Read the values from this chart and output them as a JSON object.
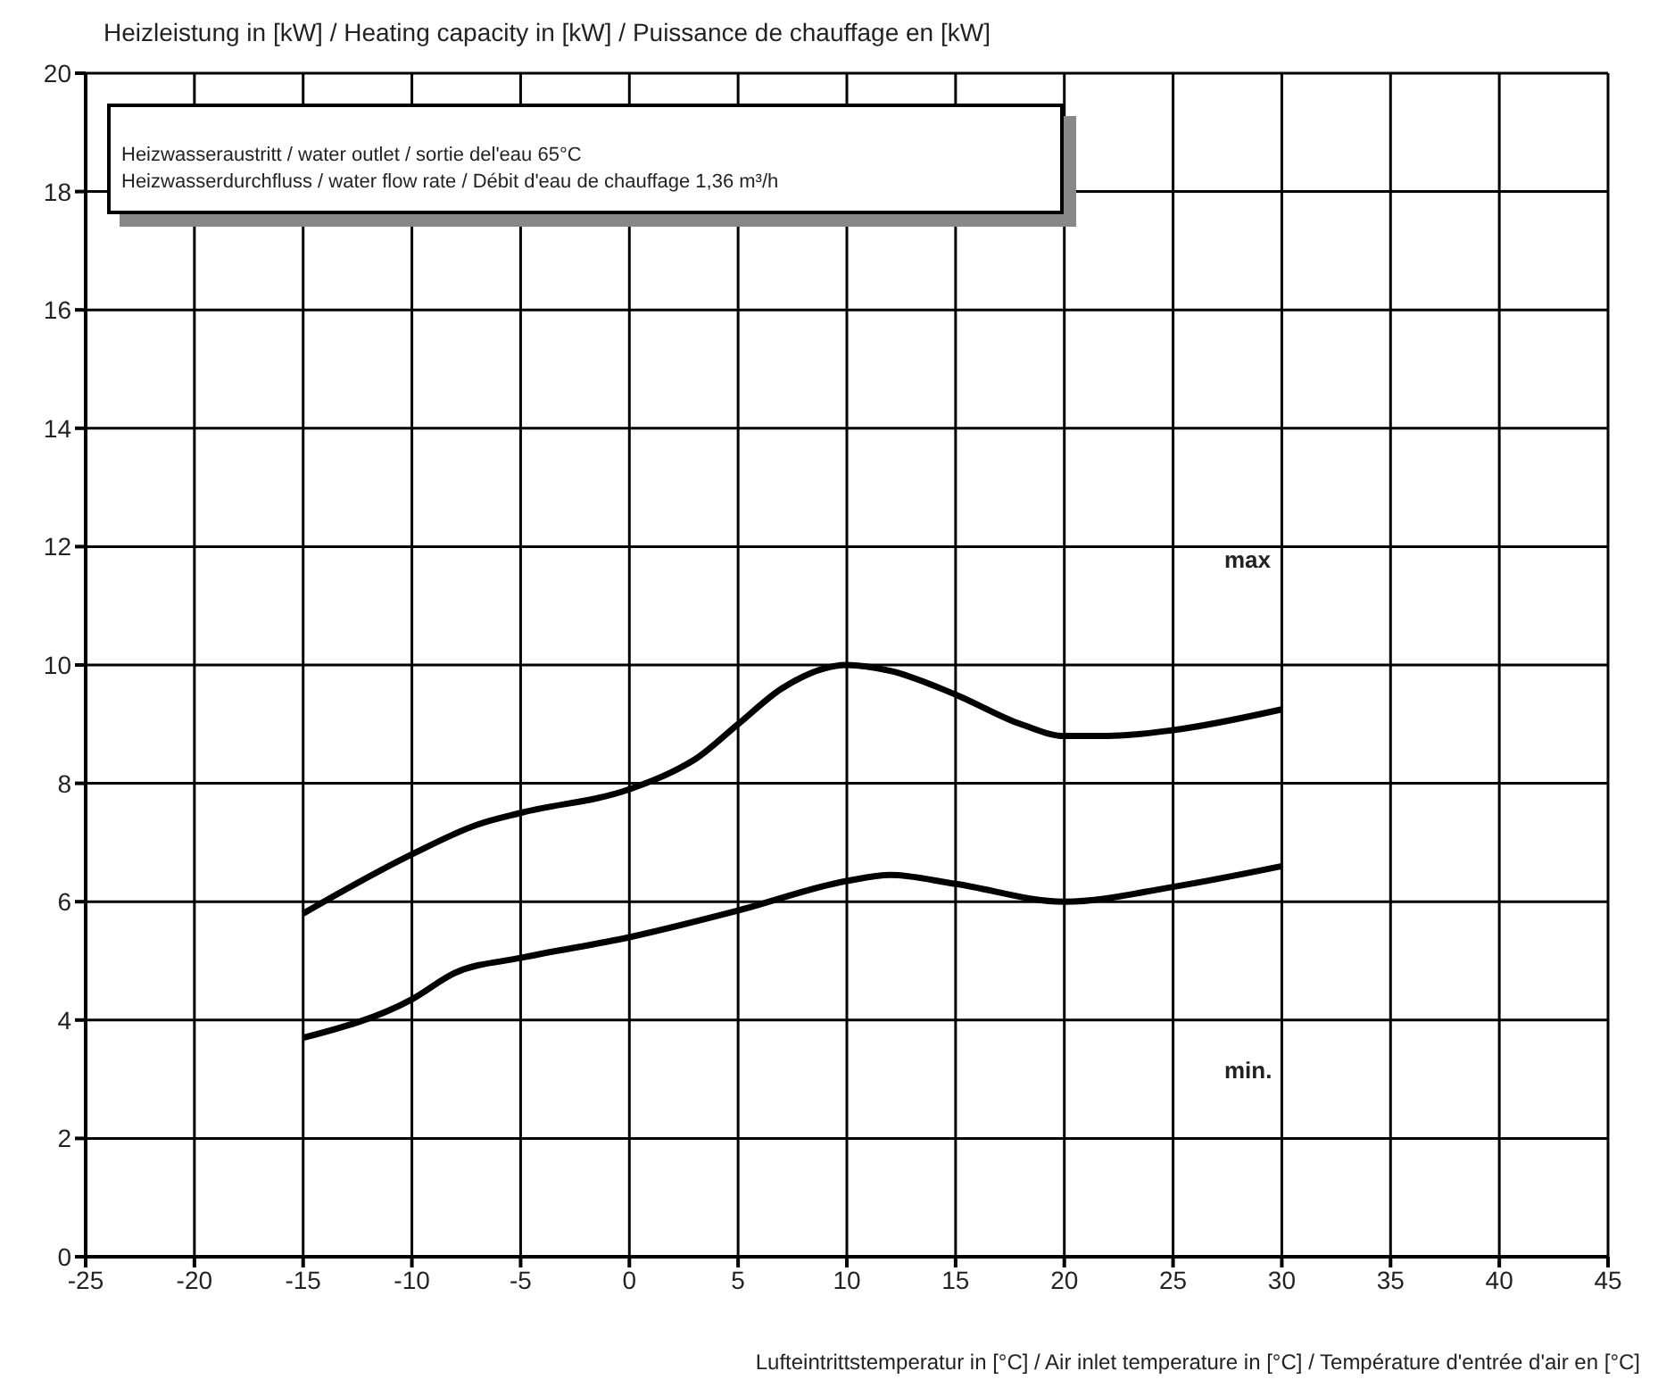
{
  "chart_data": {
    "type": "line",
    "ylabel": "Heizleistung in [kW] / Heating capacity in [kW] / Puissance de chauffage en [kW]",
    "xlabel": "Lufteintrittstemperatur in [°C] / Air inlet temperature in [°C] / Température d'entrée d'air en [°C]",
    "xlim": [
      -25,
      45
    ],
    "xticks": [
      -25,
      -20,
      -15,
      -10,
      -5,
      0,
      5,
      10,
      15,
      20,
      25,
      30,
      35,
      40,
      45
    ],
    "ylim": [
      0,
      20
    ],
    "yticks": [
      0,
      2,
      4,
      6,
      8,
      10,
      12,
      14,
      16,
      18,
      20
    ],
    "grid": true,
    "marker": "none",
    "series": [
      {
        "color": "#000000",
        "x": [
          -15,
          -10,
          -7,
          -5,
          0,
          2,
          3,
          5,
          7,
          10,
          12,
          15,
          18,
          20,
          22,
          25,
          30
        ],
        "values": [
          5.8,
          6.8,
          7.3,
          7.5,
          7.9,
          8.2,
          8.4,
          9.0,
          9.6,
          10.0,
          9.9,
          9.5,
          9.0,
          8.8,
          8.8,
          8.9,
          9.25
        ]
      },
      {
        "color": "#000000",
        "x": [
          -15,
          -10,
          -8,
          -5,
          0,
          5,
          10,
          12,
          15,
          20,
          25,
          30
        ],
        "values": [
          3.7,
          4.35,
          4.8,
          5.05,
          5.4,
          5.85,
          6.35,
          6.45,
          6.3,
          6.0,
          6.25,
          6.6
        ]
      }
    ],
    "annotations": [
      "Heizwasseraustritt / water outlet / sortie del'eau 65°C",
      "Heizwasserdurchfluss / water flow rate / Débit d'eau de chauffage 1,36 m³/h",
      "max",
      "min."
    ]
  }
}
